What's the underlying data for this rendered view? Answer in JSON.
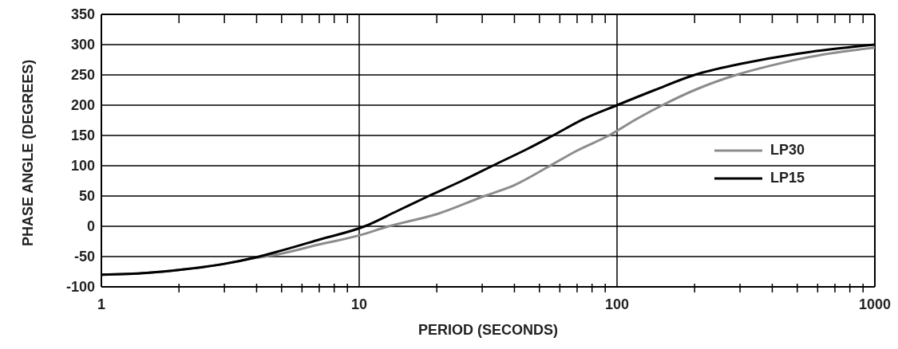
{
  "chart_data": {
    "type": "line",
    "xlabel": "PERIOD (SECONDS)",
    "ylabel": "PHASE ANGLE (DEGREES)",
    "log": "x",
    "xlim": [
      1,
      1000
    ],
    "ylim": [
      -100,
      350
    ],
    "xticks": [
      1,
      {
        "value": 2,
        "label": null
      },
      {
        "value": 3,
        "label": null
      },
      {
        "value": 4,
        "label": null
      },
      {
        "value": 5,
        "label": null
      },
      {
        "value": 6,
        "label": null
      },
      {
        "value": 7,
        "label": null
      },
      {
        "value": 8,
        "label": null
      },
      {
        "value": 9,
        "label": null
      },
      10,
      {
        "value": 20,
        "label": null
      },
      {
        "value": 30,
        "label": null
      },
      {
        "value": 40,
        "label": null
      },
      {
        "value": 50,
        "label": null
      },
      {
        "value": 60,
        "label": null
      },
      {
        "value": 70,
        "label": null
      },
      {
        "value": 80,
        "label": null
      },
      {
        "value": 90,
        "label": null
      },
      100,
      {
        "value": 200,
        "label": null
      },
      {
        "value": 300,
        "label": null
      },
      {
        "value": 400,
        "label": null
      },
      {
        "value": 500,
        "label": null
      },
      {
        "value": 600,
        "label": null
      },
      {
        "value": 700,
        "label": null
      },
      {
        "value": 800,
        "label": null
      },
      {
        "value": 900,
        "label": null
      },
      1000
    ],
    "yticks": [
      -100,
      -50,
      0,
      50,
      100,
      150,
      200,
      250,
      300,
      350
    ],
    "grid": true,
    "legend": "right",
    "marker": "none",
    "line_style": "solid",
    "series": [
      {
        "name": "LP30",
        "color": "#8c8c8c",
        "x": [
          1,
          1.5,
          2,
          3,
          4,
          5,
          7,
          10,
          13,
          20,
          30.6,
          40,
          55,
          70,
          93,
          120,
          150,
          200,
          290,
          400,
          600,
          1000
        ],
        "values": [
          -80,
          -77,
          -72,
          -62,
          -52,
          -45,
          -30,
          -15,
          0,
          20,
          50,
          68,
          100,
          125,
          150,
          178,
          200,
          225,
          250,
          266,
          282,
          295
        ]
      },
      {
        "name": "LP15",
        "color": "#000000",
        "x": [
          1,
          1.5,
          2,
          3,
          4,
          5,
          7,
          10.5,
          14,
          18.6,
          25,
          32.9,
          45,
          56.5,
          75,
          100,
          140,
          200,
          300,
          500,
          700,
          1000
        ],
        "values": [
          -80,
          -77,
          -72,
          -62,
          -51,
          -40,
          -22,
          0,
          25,
          50,
          75,
          100,
          128,
          150,
          178,
          200,
          225,
          250,
          268,
          285,
          293,
          300
        ]
      }
    ]
  }
}
